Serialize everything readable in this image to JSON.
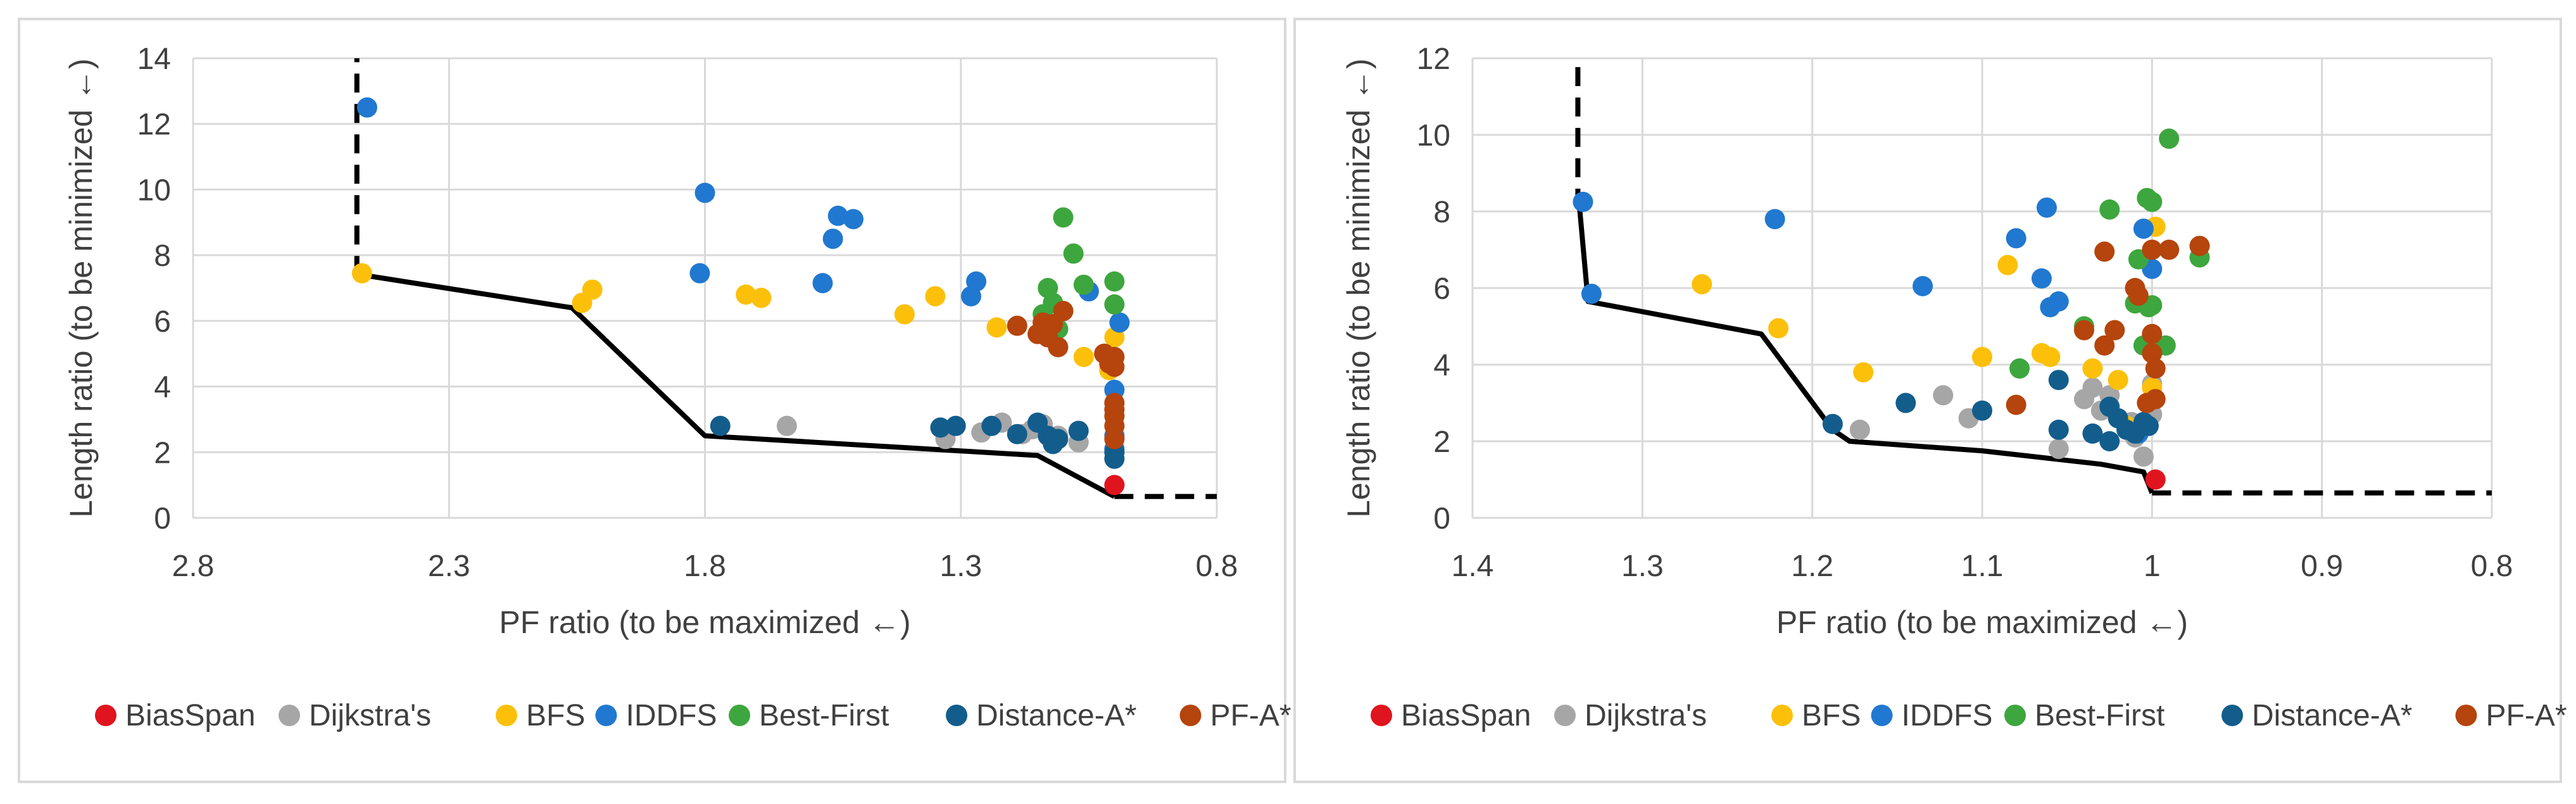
{
  "colors": {
    "BiasSpan": "#e0141e",
    "Dijkstra's": "#a6a6a6",
    "BFS": "#fcc00a",
    "IDDFS": "#2178d0",
    "Best-First": "#3ea63e",
    "Distance-A*": "#135d8c",
    "PF-A*": "#b5440d",
    "frontier": "#000000",
    "grid": "#d9d9d9",
    "panel_border": "#d9d9d9"
  },
  "chart_data": [
    {
      "type": "scatter",
      "title": "",
      "xlabel": "PF ratio (to be maximized ←)",
      "ylabel": "Length ratio (to be minimized ←)",
      "x_reversed": true,
      "xlim": [
        0.8,
        2.8
      ],
      "ylim": [
        0,
        14
      ],
      "xticks": [
        2.8,
        2.3,
        1.8,
        1.3,
        0.8
      ],
      "xtick_labels": [
        "2.8",
        "2.3",
        "1.8",
        "1.3",
        "0.8"
      ],
      "yticks": [
        0,
        2,
        4,
        6,
        8,
        10,
        12,
        14
      ],
      "ytick_labels": [
        "0",
        "2",
        "4",
        "6",
        "8",
        "10",
        "12",
        "14"
      ],
      "legend": {
        "position": "bottom",
        "entries": [
          "BiasSpan",
          "Dijkstra's",
          "BFS",
          "IDDFS",
          "Best-First",
          "Distance-A*",
          "PF-A*"
        ]
      },
      "series": [
        {
          "name": "BiasSpan",
          "points": [
            [
              1.0,
              1.0
            ]
          ]
        },
        {
          "name": "Dijkstra's",
          "points": [
            [
              1.64,
              2.8
            ],
            [
              1.26,
              2.6
            ],
            [
              1.22,
              2.9
            ],
            [
              1.14,
              2.85
            ],
            [
              1.11,
              2.5
            ],
            [
              1.07,
              2.3
            ],
            [
              1.33,
              2.4
            ],
            [
              1.16,
              2.7
            ],
            [
              1.18,
              2.55
            ]
          ]
        },
        {
          "name": "BFS",
          "points": [
            [
              2.47,
              7.45
            ],
            [
              2.04,
              6.55
            ],
            [
              2.02,
              6.95
            ],
            [
              1.72,
              6.8
            ],
            [
              1.69,
              6.7
            ],
            [
              1.41,
              6.2
            ],
            [
              1.35,
              6.75
            ],
            [
              1.23,
              5.8
            ],
            [
              1.06,
              4.9
            ],
            [
              1.0,
              5.5
            ],
            [
              1.01,
              4.5
            ]
          ]
        },
        {
          "name": "IDDFS",
          "points": [
            [
              2.46,
              12.5
            ],
            [
              1.8,
              9.9
            ],
            [
              1.81,
              7.45
            ],
            [
              1.54,
              9.2
            ],
            [
              1.51,
              9.1
            ],
            [
              1.55,
              8.5
            ],
            [
              1.57,
              7.15
            ],
            [
              1.27,
              7.2
            ],
            [
              1.28,
              6.75
            ],
            [
              1.05,
              6.9
            ],
            [
              0.99,
              5.95
            ],
            [
              1.0,
              3.9
            ],
            [
              1.0,
              2.5
            ],
            [
              1.0,
              2.1
            ]
          ]
        },
        {
          "name": "Best-First",
          "points": [
            [
              1.1,
              9.15
            ],
            [
              1.08,
              8.05
            ],
            [
              1.13,
              7.0
            ],
            [
              1.06,
              7.1
            ],
            [
              1.0,
              7.2
            ],
            [
              1.12,
              6.55
            ],
            [
              1.0,
              6.5
            ],
            [
              1.1,
              6.3
            ],
            [
              1.11,
              5.75
            ],
            [
              1.14,
              6.2
            ]
          ]
        },
        {
          "name": "Distance-A*",
          "points": [
            [
              1.77,
              2.8
            ],
            [
              1.34,
              2.75
            ],
            [
              1.31,
              2.8
            ],
            [
              1.24,
              2.8
            ],
            [
              1.19,
              2.55
            ],
            [
              1.15,
              2.9
            ],
            [
              1.12,
              2.25
            ],
            [
              1.11,
              2.4
            ],
            [
              1.13,
              2.5
            ],
            [
              1.07,
              2.65
            ],
            [
              1.0,
              1.8
            ],
            [
              1.0,
              2.0
            ]
          ]
        },
        {
          "name": "PF-A*",
          "points": [
            [
              1.19,
              5.85
            ],
            [
              1.14,
              5.95
            ],
            [
              1.15,
              5.6
            ],
            [
              1.13,
              5.5
            ],
            [
              1.11,
              5.2
            ],
            [
              1.1,
              6.3
            ],
            [
              1.12,
              5.9
            ],
            [
              1.02,
              5.0
            ],
            [
              1.0,
              4.9
            ],
            [
              1.0,
              4.6
            ],
            [
              1.0,
              3.5
            ],
            [
              1.0,
              3.1
            ],
            [
              1.0,
              2.8
            ],
            [
              1.0,
              3.3
            ],
            [
              1.01,
              4.7
            ],
            [
              1.0,
              2.4
            ]
          ]
        }
      ],
      "frontier": [
        [
          2.47,
          7.4
        ],
        [
          2.06,
          6.4
        ],
        [
          1.8,
          2.5
        ],
        [
          1.15,
          1.9
        ],
        [
          1.0,
          0.65
        ]
      ],
      "frontier_dashed": [
        [
          [
            2.48,
            7.4
          ],
          [
            2.48,
            14
          ]
        ],
        [
          [
            1.0,
            0.65
          ],
          [
            0.8,
            0.65
          ]
        ]
      ]
    },
    {
      "type": "scatter",
      "title": "",
      "xlabel": "PF ratio (to be maximized ←)",
      "ylabel": "Length ratio (to be minimized ←)",
      "x_reversed": true,
      "xlim": [
        0.8,
        1.4
      ],
      "ylim": [
        0,
        12
      ],
      "xticks": [
        1.4,
        1.3,
        1.2,
        1.1,
        1.0,
        0.9,
        0.8
      ],
      "xtick_labels": [
        "1.4",
        "1.3",
        "1.2",
        "1.1",
        "1",
        "0.9",
        "0.8"
      ],
      "yticks": [
        0,
        2,
        4,
        6,
        8,
        10,
        12
      ],
      "ytick_labels": [
        "0",
        "2",
        "4",
        "6",
        "8",
        "10",
        "12"
      ],
      "legend": {
        "position": "bottom",
        "entries": [
          "BiasSpan",
          "Dijkstra's",
          "BFS",
          "IDDFS",
          "Best-First",
          "Distance-A*",
          "PF-A*"
        ]
      },
      "series": [
        {
          "name": "BiasSpan",
          "points": [
            [
              0.998,
              1.0
            ]
          ]
        },
        {
          "name": "Dijkstra's",
          "points": [
            [
              1.172,
              2.3
            ],
            [
              1.123,
              3.2
            ],
            [
              1.108,
              2.6
            ],
            [
              1.055,
              1.8
            ],
            [
              1.04,
              3.1
            ],
            [
              1.035,
              3.4
            ],
            [
              1.03,
              2.8
            ],
            [
              1.025,
              3.2
            ],
            [
              1.01,
              2.1
            ],
            [
              1.005,
              1.6
            ],
            [
              1.0,
              2.7
            ],
            [
              1.012,
              2.5
            ],
            [
              1.0,
              3.5
            ]
          ]
        },
        {
          "name": "BFS",
          "points": [
            [
              1.265,
              6.1
            ],
            [
              1.22,
              4.95
            ],
            [
              1.17,
              3.8
            ],
            [
              1.1,
              4.2
            ],
            [
              1.085,
              6.6
            ],
            [
              1.065,
              4.3
            ],
            [
              1.06,
              4.2
            ],
            [
              1.035,
              3.9
            ],
            [
              1.02,
              3.6
            ],
            [
              1.015,
              2.4
            ],
            [
              0.998,
              7.6
            ],
            [
              1.0,
              3.4
            ]
          ]
        },
        {
          "name": "IDDFS",
          "points": [
            [
              1.335,
              8.25
            ],
            [
              1.33,
              5.85
            ],
            [
              1.222,
              7.8
            ],
            [
              1.135,
              6.05
            ],
            [
              1.08,
              7.3
            ],
            [
              1.065,
              6.25
            ],
            [
              1.062,
              8.1
            ],
            [
              1.06,
              5.5
            ],
            [
              1.055,
              5.65
            ],
            [
              1.005,
              7.55
            ],
            [
              1.0,
              6.5
            ],
            [
              1.008,
              2.2
            ]
          ]
        },
        {
          "name": "Best-First",
          "points": [
            [
              0.99,
              9.9
            ],
            [
              1.025,
              8.05
            ],
            [
              1.003,
              8.35
            ],
            [
              1.0,
              8.25
            ],
            [
              0.972,
              6.8
            ],
            [
              1.008,
              6.75
            ],
            [
              1.002,
              5.5
            ],
            [
              1.0,
              5.55
            ],
            [
              0.992,
              4.5
            ],
            [
              1.005,
              4.5
            ],
            [
              1.078,
              3.9
            ],
            [
              1.04,
              5.0
            ],
            [
              1.01,
              5.6
            ]
          ]
        },
        {
          "name": "Distance-A*",
          "points": [
            [
              1.188,
              2.45
            ],
            [
              1.145,
              3.0
            ],
            [
              1.1,
              2.8
            ],
            [
              1.055,
              2.3
            ],
            [
              1.055,
              3.6
            ],
            [
              1.035,
              2.2
            ],
            [
              1.025,
              2.0
            ],
            [
              1.02,
              2.6
            ],
            [
              1.015,
              2.3
            ],
            [
              1.01,
              2.2
            ],
            [
              1.005,
              2.5
            ],
            [
              1.002,
              2.4
            ],
            [
              1.025,
              2.9
            ]
          ]
        },
        {
          "name": "PF-A*",
          "points": [
            [
              1.08,
              2.95
            ],
            [
              1.04,
              4.9
            ],
            [
              1.028,
              4.5
            ],
            [
              1.028,
              6.95
            ],
            [
              1.022,
              4.9
            ],
            [
              1.01,
              6.0
            ],
            [
              1.008,
              5.8
            ],
            [
              1.0,
              7.0
            ],
            [
              0.99,
              7.0
            ],
            [
              0.972,
              7.1
            ],
            [
              1.0,
              4.8
            ],
            [
              1.0,
              4.3
            ],
            [
              0.998,
              3.9
            ],
            [
              1.003,
              3.0
            ],
            [
              0.998,
              3.1
            ]
          ]
        }
      ],
      "frontier": [
        [
          1.337,
          8.1
        ],
        [
          1.332,
          5.65
        ],
        [
          1.23,
          4.8
        ],
        [
          1.188,
          2.3
        ],
        [
          1.178,
          2.0
        ],
        [
          1.1,
          1.75
        ],
        [
          1.03,
          1.4
        ],
        [
          1.005,
          1.2
        ],
        [
          1.0,
          0.65
        ]
      ],
      "frontier_dashed": [
        [
          [
            1.338,
            8.1
          ],
          [
            1.338,
            12
          ]
        ],
        [
          [
            1.0,
            0.65
          ],
          [
            0.8,
            0.65
          ]
        ]
      ]
    }
  ]
}
